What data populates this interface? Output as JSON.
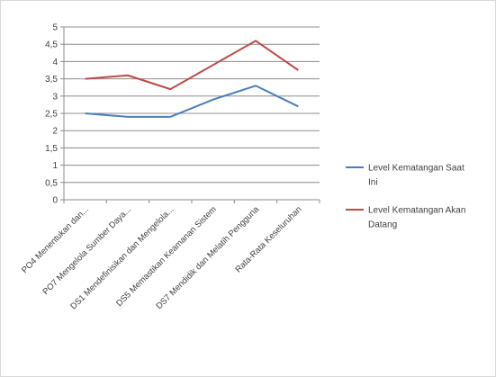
{
  "chart_data": {
    "type": "line",
    "title": "",
    "xlabel": "",
    "ylabel": "",
    "ylim": [
      0,
      5
    ],
    "y_ticks": [
      "0",
      "0,5",
      "1",
      "1,5",
      "2",
      "2,5",
      "3",
      "3,5",
      "4",
      "4,5",
      "5"
    ],
    "grid": true,
    "legend_position": "right",
    "categories": [
      "PO4 Menentukan dan...",
      "PO7 Mengelola Sumber Daya...",
      "DS1 Mendefinisikan dan Mengelola...",
      "DS5 Memastikan Keamanan Sistem",
      "DS7 Mendidik dan Melatih Pengguna",
      "Rata-Rata Keseluruhan"
    ],
    "series": [
      {
        "name": "Level Kematangan Saat Ini",
        "color": "#4a7ebb",
        "values": [
          2.5,
          2.4,
          2.4,
          2.9,
          3.3,
          2.7
        ]
      },
      {
        "name": "Level Kematangan Akan Datang",
        "color": "#be4b48",
        "values": [
          3.5,
          3.6,
          3.2,
          3.9,
          4.6,
          3.75
        ]
      }
    ]
  }
}
